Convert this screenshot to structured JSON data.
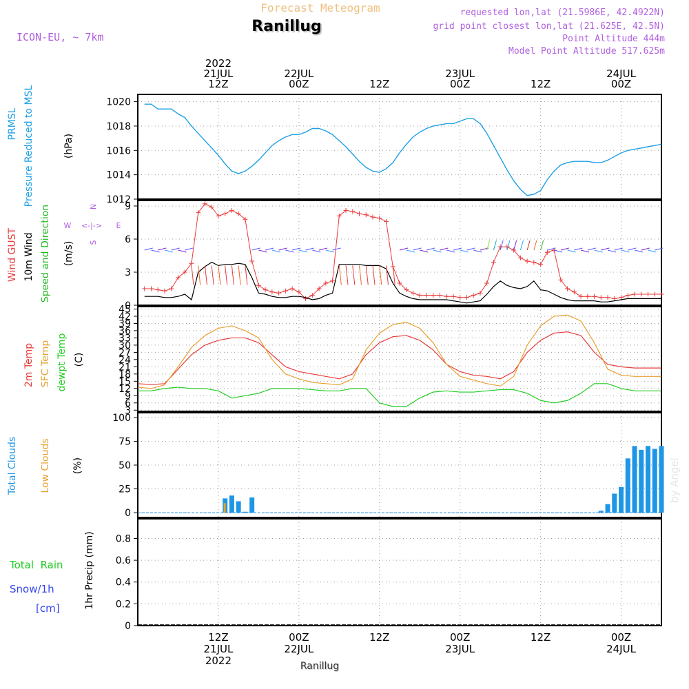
{
  "header": {
    "title_faded": "Forecast Meteogram",
    "place": "Ranillug",
    "model": "ICON-EU, ~ 7km",
    "requested": "requested lon,lat (21.5986E, 42.4922N)",
    "gridpoint": "grid point closest lon,lat (21.625E, 42.5N)",
    "altitude": "Point Altitude 444m",
    "model_altitude": "Model Point Altitude 517.625m",
    "footer_place": "Ranillug",
    "watermark": "by Angel"
  },
  "colors": {
    "pressure": "#1ea0e6",
    "gust": "#e83a3a",
    "wind": "#000000",
    "direction": "#22bb22",
    "t2m": "#e83a3a",
    "sfc": "#e8a030",
    "dewpt": "#22cc22",
    "total_clouds": "#1e96e6",
    "low_clouds": "#e8a030",
    "rain": "#22cc22",
    "snow": "#3344ee",
    "header_purple": "#b060e0",
    "faded_orange": "#f0c080"
  },
  "time_axis": {
    "top_labels": [
      {
        "h": 12,
        "lines": [
          "2022",
          "21JUL",
          "12Z"
        ]
      },
      {
        "h": 24,
        "lines": [
          "22JUL",
          "00Z"
        ]
      },
      {
        "h": 36,
        "lines": [
          "12Z"
        ]
      },
      {
        "h": 48,
        "lines": [
          "23JUL",
          "00Z"
        ]
      },
      {
        "h": 60,
        "lines": [
          "12Z"
        ]
      },
      {
        "h": 72,
        "lines": [
          "24JUL",
          "00Z"
        ]
      }
    ],
    "bottom_labels": [
      {
        "h": 12,
        "lines": [
          "12Z",
          "21JUL",
          "2022"
        ]
      },
      {
        "h": 24,
        "lines": [
          "00Z",
          "22JUL"
        ]
      },
      {
        "h": 36,
        "lines": [
          "12Z"
        ]
      },
      {
        "h": 48,
        "lines": [
          "00Z",
          "23JUL"
        ]
      },
      {
        "h": 60,
        "lines": [
          "12Z"
        ]
      },
      {
        "h": 72,
        "lines": [
          "00Z",
          "24JUL"
        ]
      }
    ]
  },
  "panels": {
    "pressure": {
      "labels": [
        {
          "text": "PRMSL",
          "color": "pressure"
        },
        {
          "text": "Pressure Reduced to MSL",
          "color": "pressure"
        },
        {
          "text": "(hPa)",
          "color": "wind"
        }
      ]
    },
    "wind": {
      "labels": [
        {
          "text": "Wind GUST",
          "color": "gust"
        },
        {
          "text": "10m Wind",
          "color": "wind"
        },
        {
          "text": "Speed and Direction",
          "color": "direction"
        },
        {
          "text": "(m/s)",
          "color": "wind"
        }
      ],
      "compass": {
        "n": "N",
        "s": "S",
        "w": "W",
        "e": "E",
        "arrow": "<-|->"
      }
    },
    "temp": {
      "labels": [
        {
          "text": "2m Temp",
          "color": "t2m"
        },
        {
          "text": "SFC Temp",
          "color": "sfc"
        },
        {
          "text": "dewpt Temp",
          "color": "dewpt"
        },
        {
          "text": "(C)",
          "color": "wind"
        }
      ]
    },
    "clouds": {
      "labels": [
        {
          "text": "Total Clouds",
          "color": "total_clouds"
        },
        {
          "text": "Low Clouds",
          "color": "low_clouds"
        },
        {
          "text": "(%)",
          "color": "wind"
        }
      ]
    },
    "precip": {
      "left_labels": [
        {
          "text": "Total  Rain",
          "color": "rain"
        },
        {
          "text": "Snow/1h",
          "color": "snow"
        },
        {
          "text": "[cm]",
          "color": "snow"
        }
      ],
      "ylabel": "1hr Precip (mm)"
    }
  },
  "chart_data": [
    {
      "type": "line",
      "title": "Forecast Meteogram",
      "ylabel": "PRMSL Pressure Reduced to MSL (hPa)",
      "ylim": [
        1012,
        1020.6
      ],
      "yticks": [
        1012,
        1014,
        1016,
        1018,
        1020
      ],
      "grid": true,
      "x_unit": "hours from 21JUL 00Z",
      "series": [
        {
          "name": "PRMSL",
          "x": [
            1,
            2,
            3,
            4,
            5,
            6,
            7,
            8,
            9,
            10,
            11,
            12,
            13,
            14,
            15,
            16,
            17,
            18,
            19,
            20,
            21,
            22,
            23,
            24,
            25,
            26,
            27,
            28,
            29,
            30,
            31,
            32,
            33,
            34,
            35,
            36,
            37,
            38,
            39,
            40,
            41,
            42,
            43,
            44,
            45,
            46,
            47,
            48,
            49,
            50,
            51,
            52,
            53,
            54,
            55,
            56,
            57,
            58,
            59,
            60,
            61,
            62,
            63,
            64,
            65,
            66,
            67,
            68,
            69,
            70,
            71,
            72,
            73,
            74,
            75,
            76,
            77,
            78
          ],
          "values": [
            1019.8,
            1019.8,
            1019.4,
            1019.4,
            1019.4,
            1019.0,
            1018.7,
            1018.0,
            1017.4,
            1016.8,
            1016.2,
            1015.6,
            1014.9,
            1014.3,
            1014.1,
            1014.3,
            1014.7,
            1015.2,
            1015.8,
            1016.4,
            1016.8,
            1017.1,
            1017.3,
            1017.3,
            1017.5,
            1017.8,
            1017.8,
            1017.6,
            1017.3,
            1016.8,
            1016.3,
            1015.7,
            1015.1,
            1014.6,
            1014.3,
            1014.2,
            1014.5,
            1015.0,
            1015.8,
            1016.5,
            1017.1,
            1017.5,
            1017.8,
            1018.0,
            1018.1,
            1018.2,
            1018.2,
            1018.4,
            1018.6,
            1018.6,
            1018.2,
            1017.4,
            1016.4,
            1015.4,
            1014.4,
            1013.5,
            1012.8,
            1012.3,
            1012.4,
            1012.7,
            1013.6,
            1014.3,
            1014.8,
            1015.0,
            1015.1,
            1015.1,
            1015.1,
            1015.0,
            1015.0,
            1015.2,
            1015.5,
            1015.8,
            1016.0,
            1016.1,
            1016.2,
            1016.3,
            1016.4,
            1016.5
          ]
        }
      ]
    },
    {
      "type": "line",
      "ylabel": "Wind GUST / 10m Wind Speed and Direction (m/s)",
      "ylim": [
        0,
        9.5
      ],
      "yticks": [
        0,
        3,
        6,
        9
      ],
      "grid": true,
      "series": [
        {
          "name": "Wind GUST",
          "x": [
            1,
            2,
            3,
            4,
            5,
            6,
            7,
            8,
            9,
            10,
            11,
            12,
            13,
            14,
            15,
            16,
            17,
            18,
            19,
            20,
            21,
            22,
            23,
            24,
            25,
            26,
            27,
            28,
            29,
            30,
            31,
            32,
            33,
            34,
            35,
            36,
            37,
            38,
            39,
            40,
            41,
            42,
            43,
            44,
            45,
            46,
            47,
            48,
            49,
            50,
            51,
            52,
            53,
            54,
            55,
            56,
            57,
            58,
            59,
            60,
            61,
            62,
            63,
            64,
            65,
            66,
            67,
            68,
            69,
            70,
            71,
            72,
            73,
            74,
            75,
            76,
            77,
            78
          ],
          "values": [
            1.5,
            1.5,
            1.4,
            1.3,
            1.5,
            2.5,
            3.0,
            3.8,
            8.4,
            9.2,
            8.9,
            8.1,
            8.3,
            8.6,
            8.3,
            7.8,
            4.0,
            1.8,
            1.4,
            1.2,
            1.1,
            1.3,
            1.5,
            1.2,
            0.6,
            0.9,
            1.5,
            2.0,
            2.2,
            8.1,
            8.6,
            8.5,
            8.3,
            8.2,
            8.0,
            7.9,
            7.6,
            3.5,
            2.0,
            1.4,
            1.1,
            0.9,
            0.9,
            0.9,
            0.9,
            0.8,
            0.8,
            0.7,
            0.7,
            0.9,
            1.1,
            2.0,
            3.9,
            5.3,
            5.3,
            5.0,
            4.3,
            4.0,
            3.9,
            3.7,
            4.8,
            5.0,
            2.3,
            1.5,
            1.2,
            0.8,
            0.8,
            0.8,
            0.7,
            0.7,
            0.6,
            0.7,
            0.9,
            1.0,
            1.0,
            1.0,
            1.0,
            1.0
          ]
        },
        {
          "name": "10m Wind",
          "x": [
            1,
            2,
            3,
            4,
            5,
            6,
            7,
            8,
            9,
            10,
            11,
            12,
            13,
            14,
            15,
            16,
            17,
            18,
            19,
            20,
            21,
            22,
            23,
            24,
            25,
            26,
            27,
            28,
            29,
            30,
            31,
            32,
            33,
            34,
            35,
            36,
            37,
            38,
            39,
            40,
            41,
            42,
            43,
            44,
            45,
            46,
            47,
            48,
            49,
            50,
            51,
            52,
            53,
            54,
            55,
            56,
            57,
            58,
            59,
            60,
            61,
            62,
            63,
            64,
            65,
            66,
            67,
            68,
            69,
            70,
            71,
            72,
            73,
            74,
            75,
            76,
            77,
            78
          ],
          "values": [
            0.8,
            0.8,
            0.8,
            0.7,
            0.7,
            0.8,
            1.0,
            0.5,
            3.0,
            3.5,
            3.9,
            3.6,
            3.7,
            3.7,
            3.8,
            3.7,
            2.5,
            1.1,
            1.0,
            0.8,
            0.7,
            0.7,
            0.8,
            0.8,
            0.7,
            0.5,
            0.6,
            0.9,
            1.1,
            3.7,
            3.7,
            3.7,
            3.7,
            3.6,
            3.6,
            3.6,
            3.3,
            2.0,
            1.1,
            0.8,
            0.6,
            0.5,
            0.5,
            0.5,
            0.5,
            0.5,
            0.4,
            0.3,
            0.2,
            0.3,
            0.4,
            1.0,
            1.7,
            2.2,
            1.8,
            1.6,
            1.5,
            1.7,
            2.2,
            1.4,
            1.3,
            1.0,
            0.7,
            0.5,
            0.4,
            0.4,
            0.4,
            0.4,
            0.3,
            0.3,
            0.4,
            0.5,
            0.6,
            0.6,
            0.6,
            0.6,
            0.6,
            0.6
          ]
        }
      ]
    },
    {
      "type": "line",
      "ylabel": "2m Temp / SFC Temp / dewpt Temp (C)",
      "ylim": [
        2.5,
        46
      ],
      "yticks": [
        3,
        6,
        9,
        12,
        15,
        18,
        21,
        24,
        27,
        30,
        33,
        36,
        39,
        42,
        45
      ],
      "grid": true,
      "series": [
        {
          "name": "2m Temp",
          "x": [
            0,
            2,
            4,
            6,
            8,
            10,
            12,
            14,
            16,
            18,
            20,
            22,
            24,
            26,
            28,
            30,
            32,
            34,
            36,
            38,
            40,
            42,
            44,
            46,
            48,
            50,
            52,
            54,
            56,
            58,
            60,
            62,
            64,
            66,
            68,
            70,
            72,
            74,
            76,
            78
          ],
          "values": [
            14,
            13.6,
            14,
            20,
            26,
            30,
            32,
            33,
            33,
            31,
            26,
            21,
            19,
            18,
            17,
            16,
            18,
            26,
            31,
            33.5,
            34,
            32,
            28,
            22,
            19,
            17.5,
            17,
            16,
            19,
            27,
            32,
            35,
            35.5,
            34,
            27,
            22,
            21,
            20.5,
            20.5,
            20.5
          ]
        },
        {
          "name": "SFC Temp",
          "x": [
            0,
            2,
            4,
            6,
            8,
            10,
            12,
            14,
            16,
            18,
            20,
            22,
            24,
            26,
            28,
            30,
            32,
            34,
            36,
            38,
            40,
            42,
            44,
            46,
            48,
            50,
            52,
            54,
            56,
            58,
            60,
            62,
            64,
            66,
            68,
            70,
            72,
            74,
            76,
            78
          ],
          "values": [
            12.5,
            12,
            13.5,
            21,
            29,
            34,
            37,
            38,
            36,
            33,
            24,
            18,
            16,
            14.5,
            14,
            13.5,
            16,
            28,
            35,
            38.5,
            39.5,
            37,
            31,
            22,
            17,
            15.5,
            14,
            13,
            17,
            30,
            38,
            42,
            42.5,
            40,
            31,
            20,
            17.5,
            17,
            17,
            17
          ]
        },
        {
          "name": "dewpt Temp",
          "x": [
            0,
            2,
            4,
            6,
            8,
            10,
            12,
            14,
            16,
            18,
            20,
            22,
            24,
            26,
            28,
            30,
            32,
            34,
            36,
            38,
            40,
            42,
            44,
            46,
            48,
            50,
            52,
            54,
            56,
            58,
            60,
            62,
            64,
            66,
            68,
            70,
            72,
            74,
            76,
            78
          ],
          "values": [
            11,
            11,
            12,
            12.5,
            12,
            12,
            11,
            8,
            9,
            10,
            12,
            12,
            12,
            11.5,
            11,
            11,
            12,
            12,
            6,
            4.5,
            4.5,
            8,
            10.5,
            11,
            10.5,
            10.5,
            11,
            11.5,
            11.5,
            10,
            7,
            6,
            7,
            10,
            14,
            14,
            12,
            11,
            11,
            11
          ]
        }
      ]
    },
    {
      "type": "bar",
      "ylabel": "Total Clouds / Low Clouds (%)",
      "ylim": [
        -5,
        105
      ],
      "yticks": [
        0,
        25,
        50,
        75,
        100
      ],
      "grid": true,
      "series": [
        {
          "name": "Total Clouds",
          "x": [
            13,
            14,
            15,
            16,
            17,
            69,
            70,
            71,
            72,
            73,
            74,
            75,
            76,
            77,
            78
          ],
          "values": [
            15,
            18,
            12,
            1,
            16,
            2,
            9,
            20,
            27,
            57,
            70,
            66,
            70,
            67,
            70
          ]
        },
        {
          "name": "Low Clouds",
          "x": [
            13
          ],
          "values": [
            10
          ]
        }
      ]
    },
    {
      "type": "bar",
      "ylabel": "1hr Precip (mm)",
      "ylim": [
        0,
        0.98
      ],
      "yticks": [
        0,
        0.2,
        0.4,
        0.6,
        0.8
      ],
      "grid": true,
      "series": [
        {
          "name": "Total Rain",
          "x": [],
          "values": []
        },
        {
          "name": "Snow/1h",
          "x": [],
          "values": []
        }
      ]
    }
  ]
}
